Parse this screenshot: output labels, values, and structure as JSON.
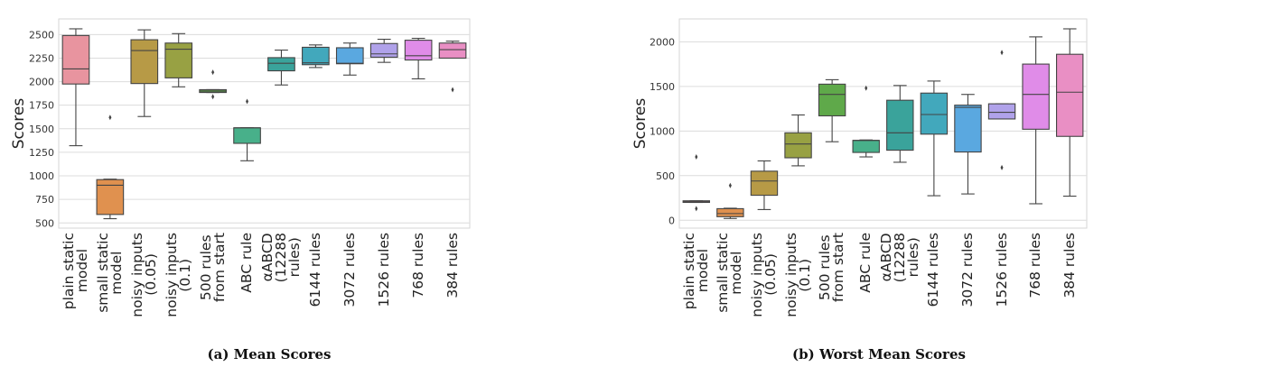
{
  "palette": [
    "#e8949f",
    "#e0914f",
    "#b79a46",
    "#98a143",
    "#5fa94a",
    "#48b08a",
    "#3aa39b",
    "#42a8bc",
    "#5aa8e0",
    "#b0a2ea",
    "#e08ce8",
    "#e98fc4"
  ],
  "chart_data": [
    {
      "type": "box",
      "caption": "(a) Mean Scores",
      "ylabel": "Scores",
      "ylim": [
        445,
        2666
      ],
      "yticks": [
        500,
        750,
        1000,
        1250,
        1500,
        1750,
        2000,
        2250,
        2500
      ],
      "ytick_labels": [
        "500",
        "750",
        "1000",
        "1250",
        "1500",
        "1750",
        "2000",
        "2250",
        "2500"
      ],
      "grid": true,
      "categories": [
        "plain static\nmodel",
        "small static\nmodel",
        "noisy inputs\n(0.05)",
        "noisy inputs\n(0.1)",
        "500 rules\nfrom start",
        "ABC rule",
        "αABCD\n(12288\nrules)",
        "6144 rules",
        "3072 rules",
        "1526 rules",
        "768 rules",
        "384 rules"
      ],
      "boxes": [
        {
          "low": 1320,
          "q1": 1975,
          "median": 2135,
          "q3": 2490,
          "high": 2561,
          "outliers": []
        },
        {
          "low": 545,
          "q1": 590,
          "median": 900,
          "q3": 960,
          "high": 965,
          "outliers": [
            1620
          ]
        },
        {
          "low": 1630,
          "q1": 1980,
          "median": 2330,
          "q3": 2445,
          "high": 2550,
          "outliers": []
        },
        {
          "low": 1945,
          "q1": 2040,
          "median": 2345,
          "q3": 2410,
          "high": 2510,
          "outliers": []
        },
        {
          "low": 1885,
          "q1": 1885,
          "median": 1900,
          "q3": 1915,
          "high": 1915,
          "outliers": [
            2100,
            1840
          ]
        },
        {
          "low": 1160,
          "q1": 1345,
          "median": 1510,
          "q3": 1510,
          "high": 1510,
          "outliers": [
            1790
          ]
        },
        {
          "low": 1965,
          "q1": 2115,
          "median": 2195,
          "q3": 2255,
          "high": 2335,
          "outliers": []
        },
        {
          "low": 2150,
          "q1": 2180,
          "median": 2200,
          "q3": 2365,
          "high": 2390,
          "outliers": []
        },
        {
          "low": 2070,
          "q1": 2190,
          "median": 2195,
          "q3": 2360,
          "high": 2410,
          "outliers": []
        },
        {
          "low": 2205,
          "q1": 2260,
          "median": 2295,
          "q3": 2405,
          "high": 2450,
          "outliers": []
        },
        {
          "low": 2030,
          "q1": 2230,
          "median": 2275,
          "q3": 2440,
          "high": 2460,
          "outliers": []
        },
        {
          "low": 2250,
          "q1": 2250,
          "median": 2340,
          "q3": 2410,
          "high": 2430,
          "outliers": [
            1915
          ]
        }
      ]
    },
    {
      "type": "box",
      "caption": "(b) Worst Mean Scores",
      "ylabel": "Scores",
      "ylim": [
        -88,
        2256
      ],
      "yticks": [
        0,
        500,
        1000,
        1500,
        2000
      ],
      "ytick_labels": [
        "0",
        "500",
        "1000",
        "1500",
        "2000"
      ],
      "grid": true,
      "categories": [
        "plain static\nmodel",
        "small static\nmodel",
        "noisy inputs\n(0.05)",
        "noisy inputs\n(0.1)",
        "500 rules\nfrom start",
        "ABC rule",
        "αABCD\n(12288\nrules)",
        "6144 rules",
        "3072 rules",
        "1526 rules",
        "768 rules",
        "384 rules"
      ],
      "boxes": [
        {
          "low": 200,
          "q1": 200,
          "median": 208,
          "q3": 218,
          "high": 218,
          "outliers": [
            710,
            130
          ]
        },
        {
          "low": 20,
          "q1": 40,
          "median": 75,
          "q3": 130,
          "high": 135,
          "outliers": [
            390
          ]
        },
        {
          "low": 120,
          "q1": 280,
          "median": 440,
          "q3": 550,
          "high": 665,
          "outliers": []
        },
        {
          "low": 610,
          "q1": 700,
          "median": 855,
          "q3": 980,
          "high": 1180,
          "outliers": []
        },
        {
          "low": 880,
          "q1": 1170,
          "median": 1410,
          "q3": 1525,
          "high": 1575,
          "outliers": []
        },
        {
          "low": 710,
          "q1": 760,
          "median": 895,
          "q3": 895,
          "high": 900,
          "outliers": [
            1480
          ]
        },
        {
          "low": 650,
          "q1": 785,
          "median": 980,
          "q3": 1345,
          "high": 1510,
          "outliers": []
        },
        {
          "low": 275,
          "q1": 965,
          "median": 1185,
          "q3": 1425,
          "high": 1560,
          "outliers": []
        },
        {
          "low": 295,
          "q1": 765,
          "median": 1265,
          "q3": 1290,
          "high": 1410,
          "outliers": []
        },
        {
          "low": 1135,
          "q1": 1135,
          "median": 1210,
          "q3": 1305,
          "high": 1305,
          "outliers": [
            1880,
            590
          ]
        },
        {
          "low": 185,
          "q1": 1020,
          "median": 1410,
          "q3": 1750,
          "high": 2055,
          "outliers": []
        },
        {
          "low": 270,
          "q1": 940,
          "median": 1435,
          "q3": 1860,
          "high": 2145,
          "outliers": []
        }
      ]
    }
  ]
}
